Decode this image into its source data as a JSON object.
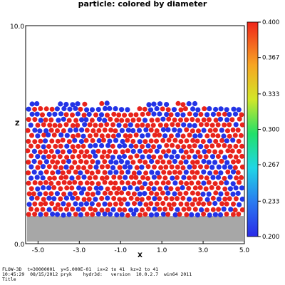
{
  "title": "particle: colored by diameter",
  "axes": {
    "x_label": "X",
    "z_label": "Z",
    "x_ticks": [
      "-5.0",
      "-3.0",
      "-1.0",
      "1.0",
      "3.0",
      "5.0"
    ],
    "z_ticks": [
      "10.0",
      "0.0"
    ]
  },
  "colorbar": {
    "ticks": [
      "0.400",
      "0.367",
      "0.333",
      "0.300",
      "0.267",
      "0.233",
      "0.200"
    ]
  },
  "footer": {
    "line1": "FLOW-3D  t=30000001  y=5.000E-01  ix=2 to 41  kz=2 to 41",
    "line2": "10:45:29  08/15/2012 pryk    hydr3d:   version  10.0.2.7  win64 2011",
    "line3": "Title"
  },
  "colors": {
    "particle_large": "#e8231b",
    "particle_small": "#2333e6",
    "obstacle": "#a7a7a7"
  },
  "chart_data": {
    "type": "scatter",
    "title": "particle: colored by diameter",
    "xlabel": "X",
    "ylabel": "Z",
    "xlim": [
      -5.6,
      5.0
    ],
    "zlim": [
      0.0,
      10.0
    ],
    "colorbar_range": [
      0.2,
      0.4
    ],
    "series": [
      {
        "name": "0.400",
        "diameter": 0.4,
        "approx_count": 430
      },
      {
        "name": "0.200",
        "diameter": 0.2,
        "approx_count": 220
      }
    ],
    "obstacle_zlim": [
      0.0,
      1.2
    ],
    "bed_top_z": 6.5
  }
}
